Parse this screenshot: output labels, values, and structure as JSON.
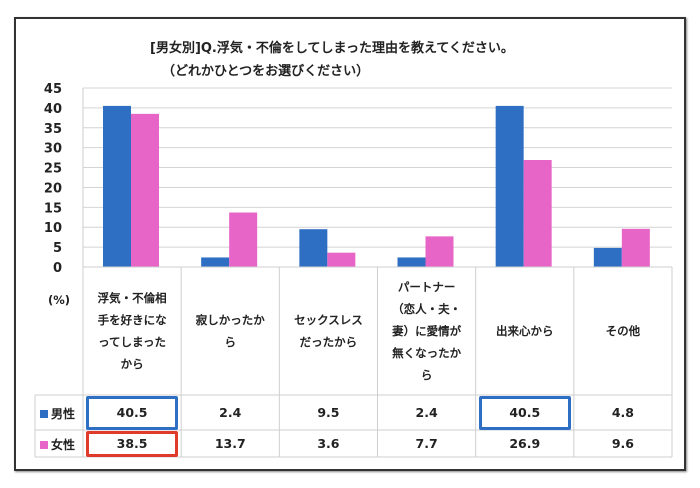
{
  "chart_data": {
    "type": "bar",
    "title": "[男女別]Q.浮気・不倫をしてしまった理由を教えてください。",
    "subtitle": "（どれかひとつをお選びください）",
    "ylabel": "(%)",
    "ylim": [
      0,
      45
    ],
    "yticks": [
      "0",
      "5",
      "10",
      "15",
      "20",
      "25",
      "30",
      "35",
      "40",
      "45"
    ],
    "grid": true,
    "categories": [
      "浮気・不倫相手を好きになってしまったから",
      "寂しかったから",
      "セックスレスだったから",
      "パートナー（恋人・夫・妻）に愛情が無くなったから",
      "出来心から",
      "その他"
    ],
    "series": [
      {
        "name": "男性",
        "color": "#2e6fc4",
        "values": [
          40.5,
          2.4,
          9.5,
          2.4,
          40.5,
          4.8
        ],
        "labels": [
          "40.5",
          "2.4",
          "9.5",
          "2.4",
          "40.5",
          "4.8"
        ]
      },
      {
        "name": "女性",
        "color": "#e865c8",
        "values": [
          38.5,
          13.7,
          3.6,
          7.7,
          26.9,
          9.6
        ],
        "labels": [
          "38.5",
          "13.7",
          "3.6",
          "7.7",
          "26.9",
          "9.6"
        ]
      }
    ],
    "highlights": [
      {
        "series": 0,
        "category": 0,
        "color": "#2e6fc4"
      },
      {
        "series": 0,
        "category": 4,
        "color": "#2e6fc4"
      },
      {
        "series": 1,
        "category": 0,
        "color": "#e03a2a"
      }
    ],
    "legend": "table-left"
  }
}
